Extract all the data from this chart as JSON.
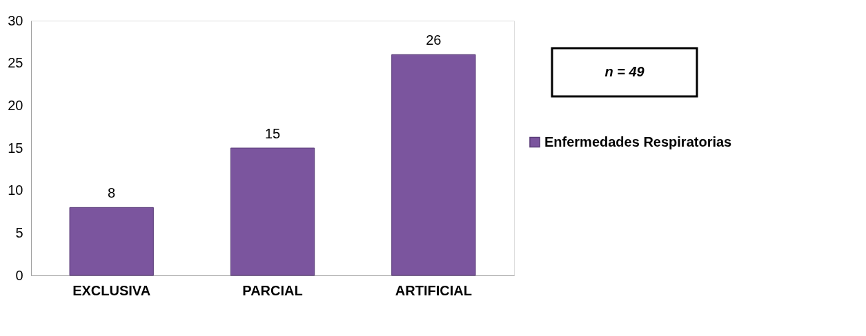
{
  "chart_data": {
    "type": "bar",
    "categories": [
      "EXCLUSIVA",
      "PARCIAL",
      "ARTIFICIAL"
    ],
    "series": [
      {
        "name": "Enfermedades Respiratorias",
        "color": "#7b559e",
        "values": [
          8,
          15,
          26
        ]
      }
    ],
    "ylim": [
      0,
      30
    ],
    "yticks": [
      0,
      5,
      10,
      15,
      20,
      25,
      30
    ],
    "data_labels": true,
    "grid": false,
    "legend": "right",
    "annotations": [
      "n = 49"
    ]
  }
}
